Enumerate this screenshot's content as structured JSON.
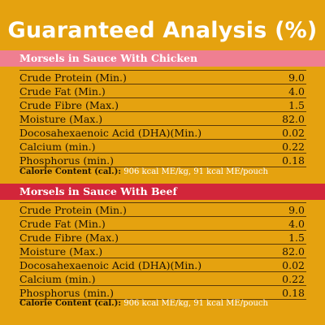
{
  "title": "Guaranteed Analysis (%)",
  "sections": [
    {
      "heading": "Morsels in Sauce With Chicken",
      "rows": [
        {
          "label": "Crude Protein (Min.)",
          "value": "9.0"
        },
        {
          "label": "Crude Fat (Min.)",
          "value": "4.0"
        },
        {
          "label": "Crude Fibre (Max.)",
          "value": "1.5"
        },
        {
          "label": "Moisture (Max.)",
          "value": "82.0"
        },
        {
          "label": "Docosahexaenoic Acid (DHA)(Min.)",
          "value": "0.02"
        },
        {
          "label": "Calcium (min.)",
          "value": "0.22"
        },
        {
          "label": "Phosphorus (min.)",
          "value": "0.18"
        }
      ],
      "calorie_label": "Calorie Content (cal.):",
      "calorie_value": "906 kcal ME/kg, 91 kcal ME/pouch"
    },
    {
      "heading": "Morsels in Sauce With Beef",
      "rows": [
        {
          "label": "Crude Protein (Min.)",
          "value": "9.0"
        },
        {
          "label": "Crude Fat (Min.)",
          "value": "4.0"
        },
        {
          "label": "Crude Fibre (Max.)",
          "value": "1.5"
        },
        {
          "label": "Moisture (Max.)",
          "value": "82.0"
        },
        {
          "label": "Docosahexaenoic Acid (DHA)(Min.)",
          "value": "0.02"
        },
        {
          "label": "Calcium (min.)",
          "value": "0.22"
        },
        {
          "label": "Phosphorus (min.)",
          "value": "0.18"
        }
      ],
      "calorie_label": "Calorie Content (cal.):",
      "calorie_value": "906 kcal ME/kg, 91 kcal ME/pouch"
    }
  ],
  "colors": {
    "background": "#e5a20f",
    "chicken_band": "#ef7f91",
    "beef_band": "#d2263a"
  }
}
